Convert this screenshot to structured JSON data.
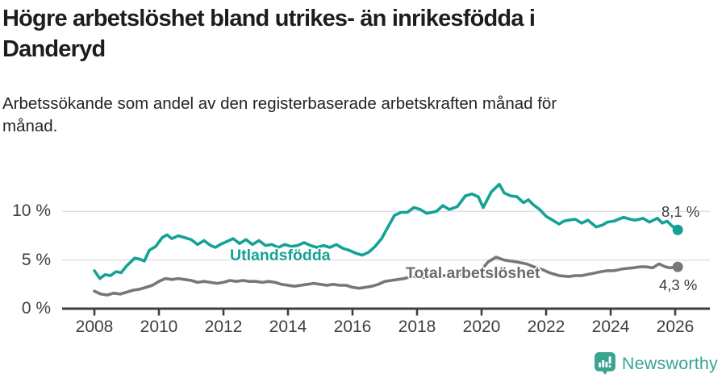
{
  "header": {
    "title_lines": [
      "Högre arbetslöshet bland utrikes- än inrikesfödda i",
      "Danderyd"
    ],
    "subtitle_lines": [
      "Arbetssökande som andel av den registerbaserade arbetskraften månad för",
      "månad."
    ]
  },
  "chart_data": {
    "type": "line",
    "title": "Högre arbetslöshet bland utrikes- än inrikesfödda i Danderyd",
    "subtitle": "Arbetssökande som andel av den registerbaserade arbetskraften månad för månad.",
    "unit": "%",
    "grid": "horizontal-only",
    "legend_position": "inline-labels-on-chart",
    "x_axis": {
      "range": [
        2007.6,
        2026.6
      ],
      "tick_years": [
        2008,
        2010,
        2012,
        2014,
        2016,
        2018,
        2020,
        2022,
        2024,
        2026
      ],
      "tick_labels": [
        "2008",
        "2010",
        "2012",
        "2014",
        "2016",
        "2018",
        "2020",
        "2022",
        "2024",
        "2026"
      ]
    },
    "y_axis": {
      "range": [
        0,
        13.5
      ],
      "tick_values": [
        0,
        5,
        10
      ],
      "tick_labels": [
        "0 %",
        "5 %",
        "10 %"
      ],
      "gridline_values": [
        5,
        10
      ]
    },
    "series": [
      {
        "name": "Utlandsfödda",
        "color": "#13a295",
        "end_label": "8,1 %",
        "end_value": 8.1,
        "points": [
          [
            2008.0,
            3.9
          ],
          [
            2008.17,
            3.1
          ],
          [
            2008.33,
            3.5
          ],
          [
            2008.5,
            3.4
          ],
          [
            2008.67,
            3.8
          ],
          [
            2008.83,
            3.7
          ],
          [
            2009.0,
            4.4
          ],
          [
            2009.25,
            5.2
          ],
          [
            2009.4,
            5.1
          ],
          [
            2009.55,
            4.9
          ],
          [
            2009.7,
            6.0
          ],
          [
            2009.9,
            6.4
          ],
          [
            2010.1,
            7.3
          ],
          [
            2010.25,
            7.6
          ],
          [
            2010.4,
            7.2
          ],
          [
            2010.6,
            7.5
          ],
          [
            2010.8,
            7.3
          ],
          [
            2011.0,
            7.1
          ],
          [
            2011.2,
            6.6
          ],
          [
            2011.4,
            7.0
          ],
          [
            2011.6,
            6.5
          ],
          [
            2011.75,
            6.3
          ],
          [
            2011.9,
            6.6
          ],
          [
            2012.1,
            6.9
          ],
          [
            2012.3,
            7.2
          ],
          [
            2012.5,
            6.7
          ],
          [
            2012.7,
            7.1
          ],
          [
            2012.9,
            6.6
          ],
          [
            2013.1,
            7.0
          ],
          [
            2013.3,
            6.5
          ],
          [
            2013.5,
            6.6
          ],
          [
            2013.7,
            6.3
          ],
          [
            2013.9,
            6.6
          ],
          [
            2014.1,
            6.4
          ],
          [
            2014.3,
            6.5
          ],
          [
            2014.5,
            6.8
          ],
          [
            2014.7,
            6.5
          ],
          [
            2014.9,
            6.3
          ],
          [
            2015.1,
            6.5
          ],
          [
            2015.3,
            6.3
          ],
          [
            2015.5,
            6.6
          ],
          [
            2015.7,
            6.2
          ],
          [
            2015.9,
            6.0
          ],
          [
            2016.1,
            5.7
          ],
          [
            2016.3,
            5.5
          ],
          [
            2016.5,
            5.8
          ],
          [
            2016.7,
            6.4
          ],
          [
            2016.9,
            7.2
          ],
          [
            2017.1,
            8.4
          ],
          [
            2017.3,
            9.6
          ],
          [
            2017.5,
            9.9
          ],
          [
            2017.7,
            9.9
          ],
          [
            2017.9,
            10.4
          ],
          [
            2018.1,
            10.2
          ],
          [
            2018.3,
            9.8
          ],
          [
            2018.6,
            10.0
          ],
          [
            2018.8,
            10.6
          ],
          [
            2019.0,
            10.2
          ],
          [
            2019.25,
            10.5
          ],
          [
            2019.5,
            11.6
          ],
          [
            2019.7,
            11.8
          ],
          [
            2019.9,
            11.5
          ],
          [
            2020.05,
            10.4
          ],
          [
            2020.3,
            12.0
          ],
          [
            2020.55,
            12.8
          ],
          [
            2020.7,
            11.9
          ],
          [
            2020.9,
            11.6
          ],
          [
            2021.1,
            11.5
          ],
          [
            2021.3,
            10.9
          ],
          [
            2021.45,
            11.2
          ],
          [
            2021.6,
            10.7
          ],
          [
            2021.8,
            10.2
          ],
          [
            2022.0,
            9.5
          ],
          [
            2022.2,
            9.1
          ],
          [
            2022.4,
            8.7
          ],
          [
            2022.55,
            9.0
          ],
          [
            2022.7,
            9.1
          ],
          [
            2022.9,
            9.2
          ],
          [
            2023.1,
            8.8
          ],
          [
            2023.3,
            9.1
          ],
          [
            2023.55,
            8.4
          ],
          [
            2023.75,
            8.6
          ],
          [
            2023.9,
            8.9
          ],
          [
            2024.1,
            9.0
          ],
          [
            2024.4,
            9.4
          ],
          [
            2024.6,
            9.2
          ],
          [
            2024.75,
            9.1
          ],
          [
            2024.9,
            9.2
          ],
          [
            2025.0,
            9.3
          ],
          [
            2025.2,
            8.9
          ],
          [
            2025.45,
            9.3
          ],
          [
            2025.6,
            8.8
          ],
          [
            2025.75,
            9.0
          ],
          [
            2025.9,
            8.5
          ],
          [
            2026.08,
            8.1
          ]
        ]
      },
      {
        "name": "Total arbetslöshet",
        "color": "#78757b",
        "end_label": "4,3 %",
        "end_value": 4.3,
        "points": [
          [
            2008.0,
            1.8
          ],
          [
            2008.2,
            1.5
          ],
          [
            2008.4,
            1.4
          ],
          [
            2008.6,
            1.6
          ],
          [
            2008.8,
            1.5
          ],
          [
            2009.0,
            1.7
          ],
          [
            2009.2,
            1.9
          ],
          [
            2009.4,
            2.0
          ],
          [
            2009.6,
            2.2
          ],
          [
            2009.8,
            2.4
          ],
          [
            2010.0,
            2.8
          ],
          [
            2010.2,
            3.1
          ],
          [
            2010.4,
            3.0
          ],
          [
            2010.6,
            3.1
          ],
          [
            2010.8,
            3.0
          ],
          [
            2011.0,
            2.9
          ],
          [
            2011.2,
            2.7
          ],
          [
            2011.4,
            2.8
          ],
          [
            2011.6,
            2.7
          ],
          [
            2011.8,
            2.6
          ],
          [
            2012.0,
            2.7
          ],
          [
            2012.2,
            2.9
          ],
          [
            2012.4,
            2.8
          ],
          [
            2012.6,
            2.9
          ],
          [
            2012.8,
            2.8
          ],
          [
            2013.0,
            2.8
          ],
          [
            2013.2,
            2.7
          ],
          [
            2013.4,
            2.8
          ],
          [
            2013.6,
            2.7
          ],
          [
            2013.8,
            2.5
          ],
          [
            2014.0,
            2.4
          ],
          [
            2014.2,
            2.3
          ],
          [
            2014.4,
            2.4
          ],
          [
            2014.6,
            2.5
          ],
          [
            2014.8,
            2.6
          ],
          [
            2015.0,
            2.5
          ],
          [
            2015.2,
            2.4
          ],
          [
            2015.4,
            2.5
          ],
          [
            2015.6,
            2.4
          ],
          [
            2015.8,
            2.4
          ],
          [
            2016.0,
            2.2
          ],
          [
            2016.2,
            2.1
          ],
          [
            2016.4,
            2.2
          ],
          [
            2016.6,
            2.3
          ],
          [
            2016.8,
            2.5
          ],
          [
            2017.0,
            2.8
          ],
          [
            2017.2,
            2.9
          ],
          [
            2017.4,
            3.0
          ],
          [
            2017.6,
            3.1
          ],
          [
            2017.8,
            3.3
          ],
          [
            2018.0,
            3.3
          ],
          [
            2018.25,
            3.2
          ],
          [
            2018.5,
            3.3
          ],
          [
            2018.75,
            3.4
          ],
          [
            2019.0,
            3.4
          ],
          [
            2019.25,
            3.5
          ],
          [
            2019.5,
            3.6
          ],
          [
            2019.75,
            3.7
          ],
          [
            2020.0,
            4.0
          ],
          [
            2020.2,
            4.8
          ],
          [
            2020.45,
            5.3
          ],
          [
            2020.7,
            5.0
          ],
          [
            2020.9,
            4.9
          ],
          [
            2021.1,
            4.8
          ],
          [
            2021.4,
            4.6
          ],
          [
            2021.7,
            4.2
          ],
          [
            2021.9,
            4.0
          ],
          [
            2022.1,
            3.7
          ],
          [
            2022.4,
            3.4
          ],
          [
            2022.7,
            3.3
          ],
          [
            2022.9,
            3.4
          ],
          [
            2023.1,
            3.4
          ],
          [
            2023.4,
            3.6
          ],
          [
            2023.7,
            3.8
          ],
          [
            2023.9,
            3.9
          ],
          [
            2024.1,
            3.9
          ],
          [
            2024.4,
            4.1
          ],
          [
            2024.7,
            4.2
          ],
          [
            2024.9,
            4.3
          ],
          [
            2025.1,
            4.3
          ],
          [
            2025.3,
            4.2
          ],
          [
            2025.5,
            4.6
          ],
          [
            2025.7,
            4.3
          ],
          [
            2025.85,
            4.2
          ],
          [
            2026.08,
            4.3
          ]
        ]
      }
    ],
    "colors": {
      "gridline": "#dedede",
      "axis": "#3f3f3f",
      "axis_text": "#3f3f3f",
      "series_label_gray": "#6c6a70"
    }
  },
  "footer": {
    "brand": "Newsworthy",
    "brand_color": "#3ba390",
    "logo_icon": "newsworthy-speech-bubble-bar-chart-icon"
  }
}
